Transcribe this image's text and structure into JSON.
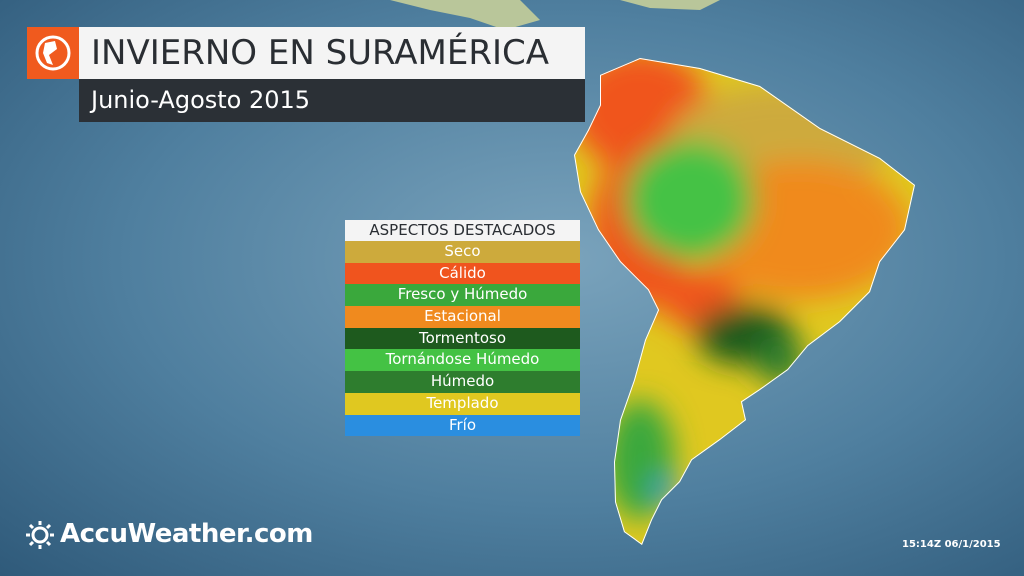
{
  "header": {
    "title": "INVIERNO EN SURAMÉRICA",
    "subtitle": "Junio-Agosto 2015"
  },
  "legend": {
    "title": "ASPECTOS DESTACADOS",
    "items": [
      {
        "label": "Seco",
        "color": "#cdaa3c"
      },
      {
        "label": "Cálido",
        "color": "#f0541e"
      },
      {
        "label": "Fresco y Húmedo",
        "color": "#3aa83c"
      },
      {
        "label": "Estacional",
        "color": "#f08a1e"
      },
      {
        "label": "Tormentoso",
        "color": "#1e5a1e"
      },
      {
        "label": "Tornándose Húmedo",
        "color": "#44c244"
      },
      {
        "label": "Húmedo",
        "color": "#2e7d2e"
      },
      {
        "label": "Templado",
        "color": "#e0c820"
      },
      {
        "label": "Frío",
        "color": "#2a8ee0"
      }
    ]
  },
  "footer": {
    "brand": "AccuWeather.com",
    "timestamp": "15:14Z 06/1/2015"
  }
}
